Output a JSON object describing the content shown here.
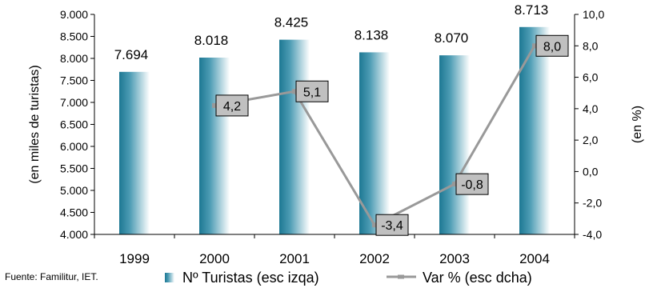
{
  "chart_data": {
    "type": "bar+line",
    "categories": [
      "1999",
      "2000",
      "2001",
      "2002",
      "2003",
      "2004"
    ],
    "series": [
      {
        "name": "Nº Turistas (esc izqa)",
        "type": "bar",
        "axis": "left",
        "values": [
          7694,
          8018,
          8425,
          8138,
          8070,
          8713
        ],
        "labels": [
          "7.694",
          "8.018",
          "8.425",
          "8.138",
          "8.070",
          "8.713"
        ],
        "color": "#1f7f9a"
      },
      {
        "name": "Var % (esc dcha)",
        "type": "line",
        "axis": "right",
        "values": [
          null,
          4.2,
          5.1,
          -3.4,
          -0.8,
          8.0
        ],
        "labels": [
          "",
          "4,2",
          "5,1",
          "-3,4",
          "-0,8",
          "8,0"
        ],
        "color": "#999999"
      }
    ],
    "ylabel": "(en miles de turistas)",
    "y2label": "(en %)",
    "ylim": [
      4000,
      9000
    ],
    "y2lim": [
      -4,
      10
    ],
    "yticks": [
      "4.000",
      "4.500",
      "5.000",
      "5.500",
      "6.000",
      "6.500",
      "7.000",
      "7.500",
      "8.000",
      "8.500",
      "9.000"
    ],
    "y2ticks": [
      "-4,0",
      "-2,0",
      "0,0",
      "2,0",
      "4,0",
      "6,0",
      "8,0",
      "10,0"
    ],
    "grid": false,
    "legend_position": "bottom",
    "source": "Fuente: Familitur, IET."
  }
}
